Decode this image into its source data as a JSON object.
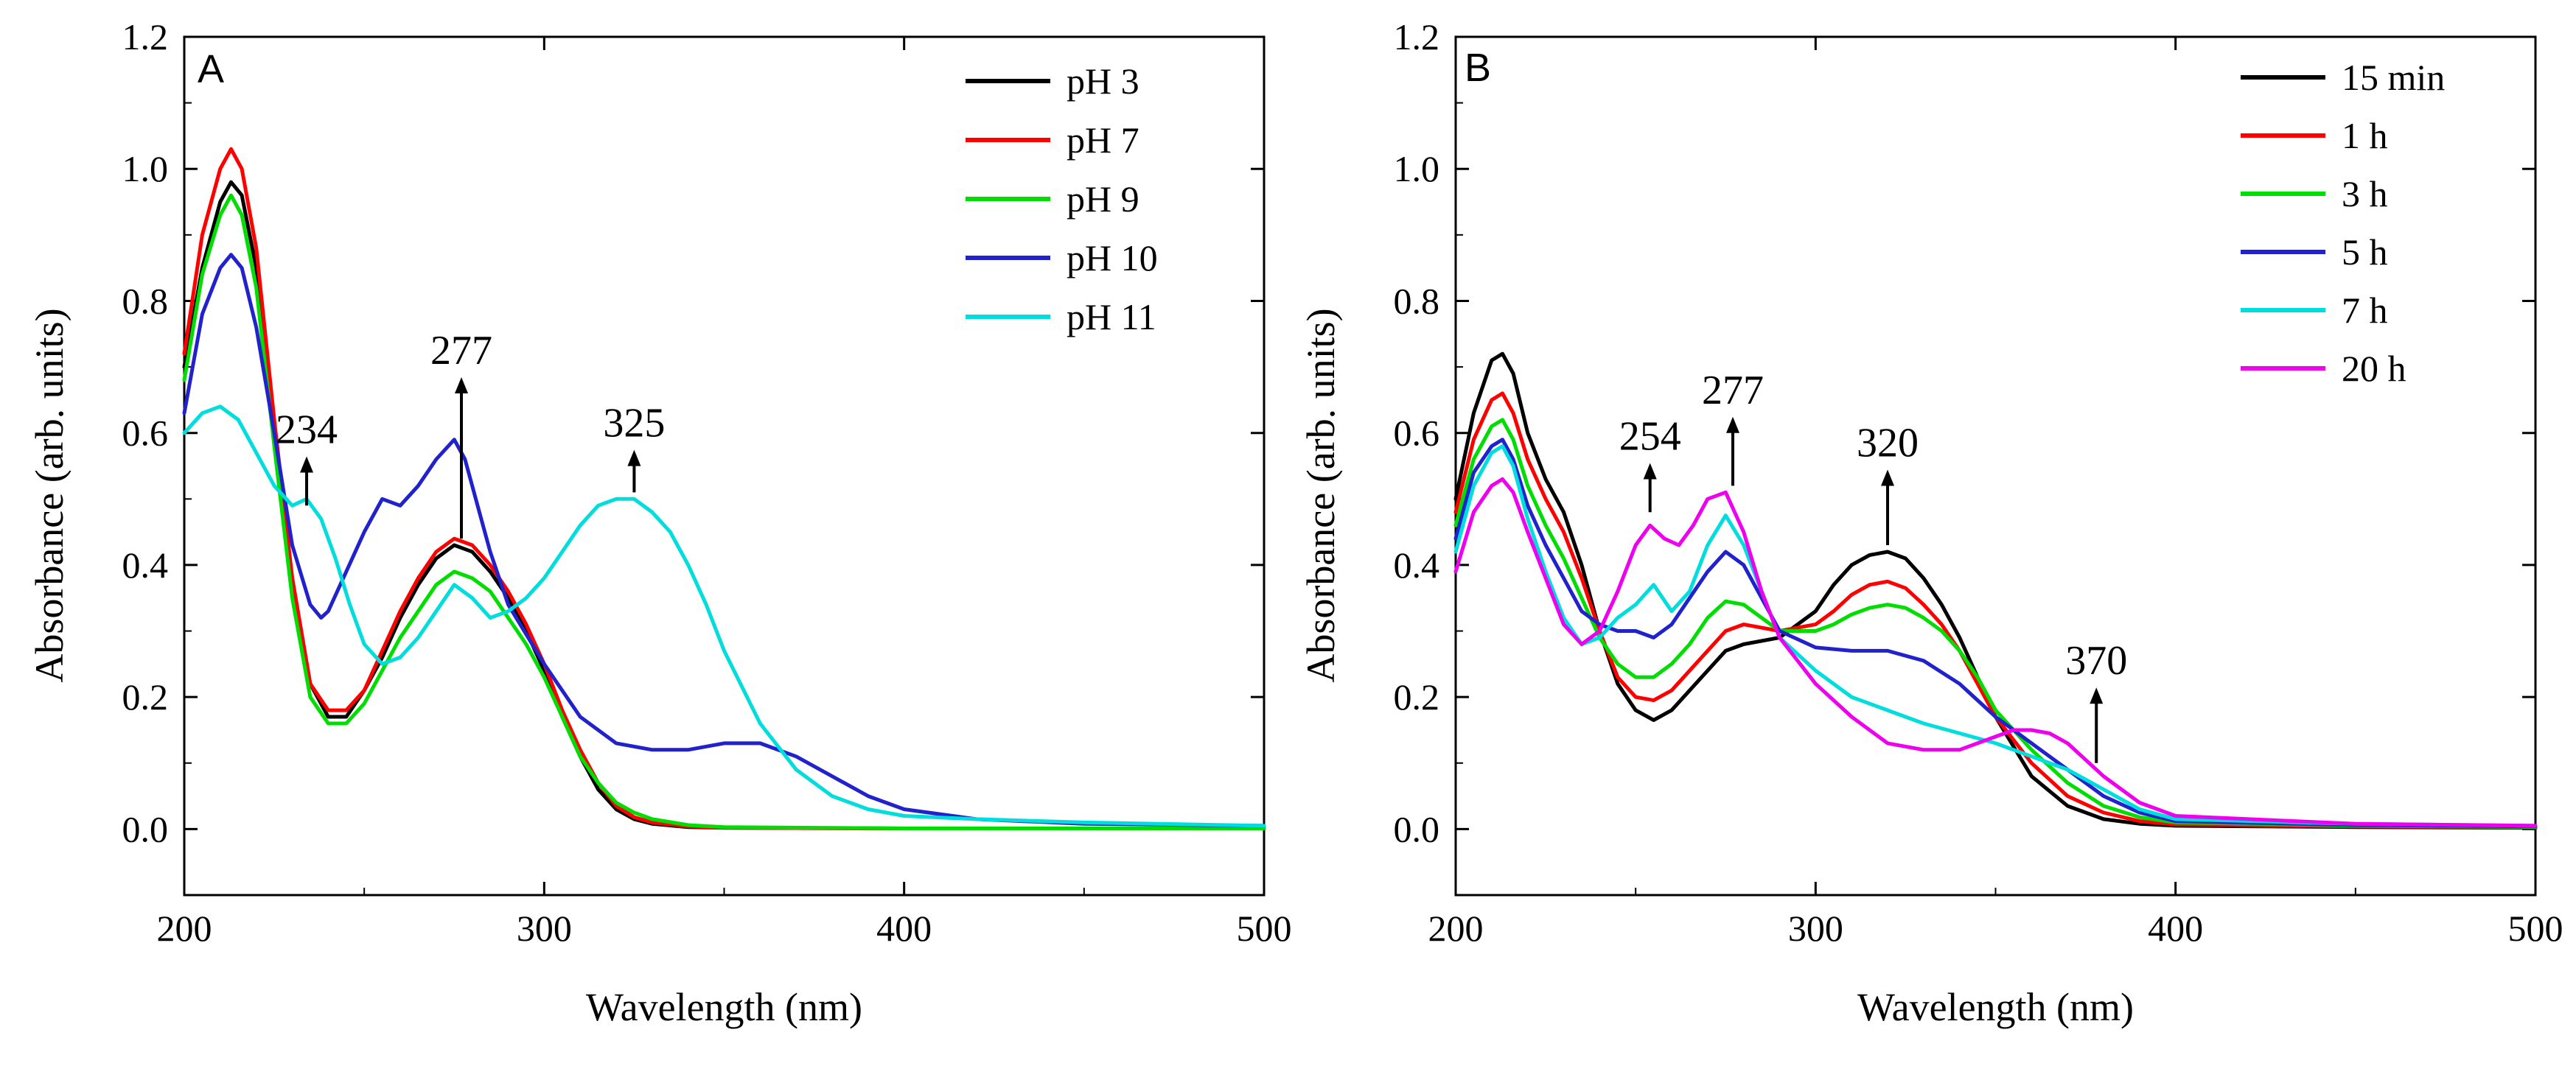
{
  "chart_data": [
    {
      "type": "line",
      "panel_label": "A",
      "xlabel": "Wavelength (nm)",
      "ylabel": "Absorbance (arb. units)",
      "xlim": [
        200,
        500
      ],
      "ylim": [
        -0.1,
        1.2
      ],
      "x_ticks": [
        200,
        300,
        400,
        500
      ],
      "x_tick_labels": [
        "200",
        "300",
        "400",
        "500"
      ],
      "y_ticks": [
        0.0,
        0.2,
        0.4,
        0.6,
        0.8,
        1.0,
        1.2
      ],
      "y_tick_labels": [
        "0.0",
        "0.2",
        "0.4",
        "0.6",
        "0.8",
        "1.0",
        "1.2"
      ],
      "legend_position": "top-right",
      "series": [
        {
          "name": "pH 3",
          "color": "#000000",
          "x": [
            200,
            205,
            210,
            213,
            216,
            220,
            225,
            230,
            235,
            240,
            245,
            250,
            255,
            260,
            265,
            270,
            275,
            280,
            285,
            290,
            295,
            300,
            305,
            310,
            315,
            320,
            325,
            330,
            340,
            350,
            400,
            450,
            500
          ],
          "y": [
            0.7,
            0.85,
            0.95,
            0.98,
            0.96,
            0.85,
            0.6,
            0.38,
            0.22,
            0.17,
            0.17,
            0.21,
            0.26,
            0.32,
            0.37,
            0.41,
            0.43,
            0.42,
            0.39,
            0.35,
            0.3,
            0.24,
            0.17,
            0.11,
            0.06,
            0.03,
            0.015,
            0.008,
            0.003,
            0.002,
            0.001,
            0.001,
            0.001
          ]
        },
        {
          "name": "pH 7",
          "color": "#ff0000",
          "x": [
            200,
            205,
            210,
            213,
            216,
            220,
            225,
            230,
            235,
            240,
            245,
            250,
            255,
            260,
            265,
            270,
            275,
            280,
            285,
            290,
            295,
            300,
            305,
            310,
            315,
            320,
            325,
            330,
            340,
            350,
            400,
            450,
            500
          ],
          "y": [
            0.72,
            0.9,
            1.0,
            1.03,
            1.0,
            0.88,
            0.62,
            0.38,
            0.22,
            0.18,
            0.18,
            0.21,
            0.27,
            0.33,
            0.38,
            0.42,
            0.44,
            0.43,
            0.4,
            0.36,
            0.31,
            0.25,
            0.18,
            0.12,
            0.07,
            0.035,
            0.018,
            0.01,
            0.004,
            0.002,
            0.001,
            0.001,
            0.001
          ]
        },
        {
          "name": "pH 9",
          "color": "#00dd00",
          "x": [
            200,
            205,
            210,
            213,
            216,
            220,
            225,
            230,
            235,
            240,
            245,
            250,
            255,
            260,
            265,
            270,
            275,
            280,
            285,
            290,
            295,
            300,
            305,
            310,
            315,
            320,
            325,
            330,
            340,
            350,
            400,
            450,
            500
          ],
          "y": [
            0.68,
            0.84,
            0.93,
            0.96,
            0.93,
            0.82,
            0.58,
            0.35,
            0.2,
            0.16,
            0.16,
            0.19,
            0.24,
            0.29,
            0.33,
            0.37,
            0.39,
            0.38,
            0.36,
            0.32,
            0.28,
            0.23,
            0.17,
            0.11,
            0.07,
            0.04,
            0.025,
            0.015,
            0.006,
            0.003,
            0.001,
            0.001,
            0.001
          ]
        },
        {
          "name": "pH 10",
          "color": "#2222cc",
          "x": [
            200,
            205,
            210,
            213,
            216,
            220,
            225,
            230,
            235,
            238,
            240,
            245,
            250,
            255,
            260,
            265,
            270,
            275,
            278,
            282,
            285,
            290,
            300,
            310,
            320,
            330,
            340,
            350,
            360,
            370,
            380,
            390,
            400,
            420,
            450,
            500
          ],
          "y": [
            0.63,
            0.78,
            0.85,
            0.87,
            0.85,
            0.76,
            0.6,
            0.43,
            0.34,
            0.32,
            0.33,
            0.39,
            0.45,
            0.5,
            0.49,
            0.52,
            0.56,
            0.59,
            0.56,
            0.48,
            0.42,
            0.34,
            0.25,
            0.17,
            0.13,
            0.12,
            0.12,
            0.13,
            0.13,
            0.11,
            0.08,
            0.05,
            0.03,
            0.015,
            0.008,
            0.005
          ]
        },
        {
          "name": "pH 11",
          "color": "#00dddd",
          "x": [
            200,
            205,
            210,
            215,
            220,
            225,
            230,
            234,
            238,
            242,
            246,
            250,
            255,
            260,
            265,
            270,
            275,
            280,
            285,
            290,
            295,
            300,
            305,
            310,
            315,
            320,
            325,
            330,
            335,
            340,
            345,
            350,
            360,
            370,
            380,
            390,
            400,
            420,
            450,
            500
          ],
          "y": [
            0.6,
            0.63,
            0.64,
            0.62,
            0.57,
            0.52,
            0.49,
            0.5,
            0.47,
            0.41,
            0.34,
            0.28,
            0.25,
            0.26,
            0.29,
            0.33,
            0.37,
            0.35,
            0.32,
            0.33,
            0.35,
            0.38,
            0.42,
            0.46,
            0.49,
            0.5,
            0.5,
            0.48,
            0.45,
            0.4,
            0.34,
            0.27,
            0.16,
            0.09,
            0.05,
            0.03,
            0.02,
            0.015,
            0.01,
            0.005
          ]
        }
      ],
      "annotations": [
        {
          "text": "234",
          "x": 234,
          "y_arrow_from": 0.49,
          "y_arrow_to": 0.56
        },
        {
          "text": "277",
          "x": 277,
          "y_arrow_from": 0.44,
          "y_arrow_to": 0.68
        },
        {
          "text": "325",
          "x": 325,
          "y_arrow_from": 0.51,
          "y_arrow_to": 0.57
        }
      ]
    },
    {
      "type": "line",
      "panel_label": "B",
      "xlabel": "Wavelength (nm)",
      "ylabel": "Absorbance (arb. units)",
      "xlim": [
        200,
        500
      ],
      "ylim": [
        -0.1,
        1.2
      ],
      "x_ticks": [
        200,
        300,
        400,
        500
      ],
      "x_tick_labels": [
        "200",
        "300",
        "400",
        "500"
      ],
      "y_ticks": [
        0.0,
        0.2,
        0.4,
        0.6,
        0.8,
        1.0,
        1.2
      ],
      "y_tick_labels": [
        "0.0",
        "0.2",
        "0.4",
        "0.6",
        "0.8",
        "1.0",
        "1.2"
      ],
      "legend_position": "top-right",
      "series": [
        {
          "name": "15 min",
          "color": "#000000",
          "x": [
            200,
            205,
            210,
            213,
            216,
            220,
            225,
            230,
            235,
            240,
            245,
            250,
            255,
            260,
            265,
            270,
            275,
            280,
            290,
            300,
            305,
            310,
            315,
            320,
            325,
            330,
            335,
            340,
            345,
            350,
            360,
            370,
            380,
            390,
            400,
            450,
            500
          ],
          "y": [
            0.5,
            0.63,
            0.71,
            0.72,
            0.69,
            0.6,
            0.53,
            0.48,
            0.4,
            0.3,
            0.22,
            0.18,
            0.165,
            0.18,
            0.21,
            0.24,
            0.27,
            0.28,
            0.29,
            0.33,
            0.37,
            0.4,
            0.415,
            0.42,
            0.41,
            0.38,
            0.34,
            0.29,
            0.23,
            0.17,
            0.08,
            0.035,
            0.015,
            0.008,
            0.005,
            0.003,
            0.002
          ]
        },
        {
          "name": "1 h",
          "color": "#ff0000",
          "x": [
            200,
            205,
            210,
            213,
            216,
            220,
            225,
            230,
            235,
            240,
            245,
            250,
            255,
            260,
            265,
            270,
            275,
            280,
            290,
            300,
            305,
            310,
            315,
            320,
            325,
            330,
            335,
            340,
            345,
            350,
            360,
            370,
            380,
            390,
            400,
            450,
            500
          ],
          "y": [
            0.48,
            0.59,
            0.65,
            0.66,
            0.63,
            0.56,
            0.5,
            0.45,
            0.38,
            0.3,
            0.23,
            0.2,
            0.195,
            0.21,
            0.24,
            0.27,
            0.3,
            0.31,
            0.3,
            0.31,
            0.33,
            0.355,
            0.37,
            0.375,
            0.365,
            0.34,
            0.31,
            0.27,
            0.22,
            0.17,
            0.1,
            0.05,
            0.025,
            0.012,
            0.007,
            0.004,
            0.003
          ]
        },
        {
          "name": "3 h",
          "color": "#00dd00",
          "x": [
            200,
            205,
            210,
            213,
            216,
            220,
            225,
            230,
            235,
            240,
            245,
            250,
            255,
            260,
            265,
            270,
            275,
            280,
            290,
            300,
            305,
            310,
            315,
            320,
            325,
            330,
            335,
            340,
            345,
            350,
            360,
            370,
            380,
            390,
            400,
            450,
            500
          ],
          "y": [
            0.46,
            0.56,
            0.61,
            0.62,
            0.59,
            0.52,
            0.46,
            0.41,
            0.35,
            0.29,
            0.25,
            0.23,
            0.23,
            0.25,
            0.28,
            0.32,
            0.345,
            0.34,
            0.3,
            0.3,
            0.31,
            0.325,
            0.335,
            0.34,
            0.335,
            0.32,
            0.3,
            0.27,
            0.23,
            0.18,
            0.12,
            0.07,
            0.035,
            0.018,
            0.01,
            0.005,
            0.003
          ]
        },
        {
          "name": "5 h",
          "color": "#2222cc",
          "x": [
            200,
            205,
            210,
            213,
            216,
            220,
            225,
            230,
            235,
            240,
            245,
            250,
            255,
            260,
            265,
            270,
            275,
            280,
            290,
            300,
            310,
            320,
            330,
            340,
            350,
            360,
            370,
            380,
            390,
            400,
            450,
            500
          ],
          "y": [
            0.44,
            0.54,
            0.58,
            0.59,
            0.56,
            0.49,
            0.43,
            0.38,
            0.33,
            0.31,
            0.3,
            0.3,
            0.29,
            0.31,
            0.35,
            0.39,
            0.42,
            0.4,
            0.3,
            0.275,
            0.27,
            0.27,
            0.255,
            0.22,
            0.17,
            0.13,
            0.09,
            0.05,
            0.025,
            0.012,
            0.006,
            0.004
          ]
        },
        {
          "name": "7 h",
          "color": "#00dddd",
          "x": [
            200,
            205,
            210,
            213,
            216,
            220,
            225,
            230,
            235,
            240,
            245,
            250,
            255,
            260,
            265,
            270,
            275,
            280,
            290,
            300,
            310,
            320,
            330,
            340,
            350,
            360,
            370,
            380,
            390,
            400,
            450,
            500
          ],
          "y": [
            0.42,
            0.52,
            0.57,
            0.58,
            0.55,
            0.47,
            0.39,
            0.32,
            0.28,
            0.29,
            0.32,
            0.34,
            0.37,
            0.33,
            0.36,
            0.43,
            0.475,
            0.43,
            0.29,
            0.24,
            0.2,
            0.18,
            0.16,
            0.145,
            0.13,
            0.11,
            0.09,
            0.06,
            0.03,
            0.015,
            0.008,
            0.005
          ]
        },
        {
          "name": "20 h",
          "color": "#ee00ee",
          "x": [
            200,
            205,
            210,
            213,
            216,
            220,
            225,
            230,
            235,
            240,
            245,
            250,
            254,
            258,
            262,
            266,
            270,
            275,
            280,
            285,
            290,
            300,
            310,
            320,
            330,
            340,
            350,
            355,
            360,
            365,
            370,
            375,
            380,
            390,
            400,
            450,
            500
          ],
          "y": [
            0.39,
            0.48,
            0.52,
            0.53,
            0.51,
            0.45,
            0.38,
            0.31,
            0.28,
            0.3,
            0.36,
            0.43,
            0.46,
            0.44,
            0.43,
            0.46,
            0.5,
            0.51,
            0.45,
            0.36,
            0.29,
            0.22,
            0.17,
            0.13,
            0.12,
            0.12,
            0.14,
            0.15,
            0.15,
            0.145,
            0.13,
            0.105,
            0.08,
            0.04,
            0.02,
            0.008,
            0.005
          ]
        }
      ],
      "annotations": [
        {
          "text": "254",
          "x": 254,
          "y_arrow_from": 0.48,
          "y_arrow_to": 0.55
        },
        {
          "text": "277",
          "x": 277,
          "y_arrow_from": 0.52,
          "y_arrow_to": 0.62
        },
        {
          "text": "320",
          "x": 320,
          "y_arrow_from": 0.43,
          "y_arrow_to": 0.54
        },
        {
          "text": "370",
          "x": 378,
          "y_arrow_from": 0.1,
          "y_arrow_to": 0.21
        }
      ]
    }
  ]
}
